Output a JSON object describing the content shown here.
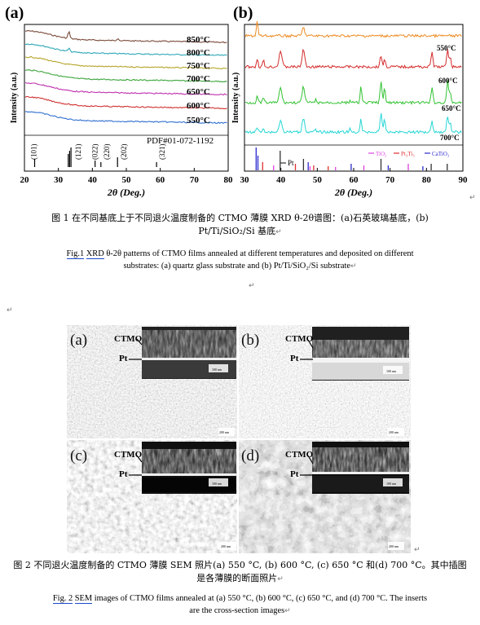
{
  "figure1": {
    "panel_a": {
      "label": "(a)",
      "chart_data": {
        "type": "line",
        "xlabel": "2θ (Deg.)",
        "ylabel": "Intensity (a.u.)",
        "xlim": [
          20,
          80
        ],
        "x_ticks": [
          20,
          30,
          40,
          50,
          60,
          70,
          80
        ],
        "series": [
          {
            "name": "850°C",
            "color": "#7a4a3a"
          },
          {
            "name": "800°C",
            "color": "#2ea7b7"
          },
          {
            "name": "750°C",
            "color": "#b5a52a"
          },
          {
            "name": "700°C",
            "color": "#3aa53a"
          },
          {
            "name": "650°C",
            "color": "#c030b0"
          },
          {
            "name": "600°C",
            "color": "#d03232"
          },
          {
            "name": "550°C",
            "color": "#2f6fd0"
          }
        ],
        "reference_label": "PDF#01-072-1192",
        "reference_peaks": [
          {
            "x": 23.0,
            "label": "(101)"
          },
          {
            "x": 32.9,
            "label": ""
          },
          {
            "x": 33.3,
            "label": ""
          },
          {
            "x": 33.7,
            "label": "(121)"
          },
          {
            "x": 40.8,
            "label": "(022)"
          },
          {
            "x": 47.4,
            "label": "(202)"
          },
          {
            "x": 42.5,
            "label": "(220)"
          },
          {
            "x": 58.9,
            "label": "(321)"
          }
        ]
      }
    },
    "panel_b": {
      "label": "(b)",
      "chart_data": {
        "type": "line",
        "xlabel": "2θ (Deg.)",
        "ylabel": "Intensity (a.u.)",
        "xlim": [
          30,
          90
        ],
        "x_ticks": [
          30,
          40,
          50,
          60,
          70,
          80,
          90
        ],
        "series": [
          {
            "name": "550°C",
            "color": "#ee8a22"
          },
          {
            "name": "600°C",
            "color": "#d42b2b"
          },
          {
            "name": "650°C",
            "color": "#33c233"
          },
          {
            "name": "700°C",
            "color": "#27d6d6"
          }
        ],
        "reference_legend": [
          {
            "name": "Pt",
            "color": "#333333"
          },
          {
            "name": "TiO₂",
            "color": "#e040e0"
          },
          {
            "name": "Pt₃Ti₃",
            "color": "#e03030"
          },
          {
            "name": "CaTiO₃",
            "color": "#2a2acf"
          }
        ]
      }
    },
    "caption_cn": "图 1 在不同基底上于不同退火温度制备的 CTMO 薄膜 XRD θ-2θ谱图：(a)石英玻璃基底，(b) Pt/Ti/SiO₂/Si 基底",
    "caption_cn_line1": "图 1  在不同基底上于不同退火温度制备的 CTMO 薄膜 XRD θ-2θ谱图：(a)石英玻璃基底，(b)",
    "caption_cn_line2": "Pt/Ti/SiO₂/Si 基底",
    "caption_en_fig": "Fig.1",
    "caption_en_xrd": "XRD",
    "caption_en_line1_rest": " θ-2θ patterns of CTMO films annealed at different temperatures and deposited on different",
    "caption_en_line2": "substrates: (a) quartz glass substrate and (b) Pt/Ti/SiO₂/Si substrate"
  },
  "figure2": {
    "panels": [
      {
        "label": "(a)",
        "ctmo": "CTMO",
        "pt": "Pt",
        "inset_scale": "100 nm",
        "main_scale": "200 nm"
      },
      {
        "label": "(b)",
        "ctmo": "CTMO",
        "pt": "Pt",
        "inset_scale": "100 nm",
        "main_scale": "200 nm"
      },
      {
        "label": "(c)",
        "ctmo": "CTMO",
        "pt": "Pt",
        "inset_scale": "100 nm",
        "main_scale": "200 nm"
      },
      {
        "label": "(d)",
        "ctmo": "CTMO",
        "pt": "Pt",
        "inset_scale": "100 nm",
        "main_scale": "200 nm"
      }
    ],
    "caption_cn_line1": "图 2  不同退火温度制备的 CTMO 薄膜 SEM 照片(a) 550 °C, (b) 600 °C, (c) 650 °C 和(d) 700 °C。其中插图",
    "caption_cn_line2": "是各薄膜的断面照片",
    "caption_en_fig": "Fig. 2",
    "caption_en_sem": "SEM",
    "caption_en_line1_rest": " images of CTMO films annealed at (a) 550 °C, (b) 600 °C, (c) 650 °C, and (d) 700 °C. The inserts",
    "caption_en_line2": "are the cross-section images"
  }
}
